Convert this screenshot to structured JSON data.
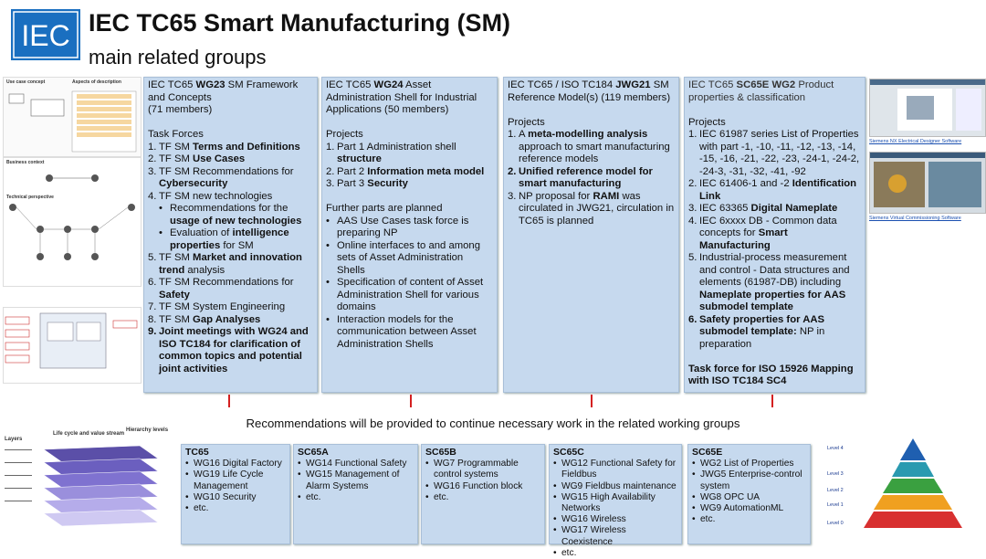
{
  "header": {
    "logo": "IEC",
    "title": "IEC TC65 Smart Manufacturing (SM)",
    "subtitle": "main related groups"
  },
  "columns": [
    {
      "heading": [
        [
          {
            "t": "IEC TC65 "
          },
          {
            "t": "WG23",
            "b": true
          },
          {
            "t": " SM Framework and Concepts"
          }
        ],
        [
          {
            "t": "(71 members)"
          }
        ]
      ],
      "sections": [
        {
          "title": [
            {
              "t": "Task Forces"
            }
          ],
          "items": [
            {
              "marker": "1.",
              "runs": [
                {
                  "t": "TF SM "
                },
                {
                  "t": "Terms and Definitions",
                  "b": true
                }
              ]
            },
            {
              "marker": "2.",
              "runs": [
                {
                  "t": "TF SM "
                },
                {
                  "t": "Use Cases",
                  "b": true
                }
              ]
            },
            {
              "marker": "3.",
              "runs": [
                {
                  "t": "TF SM Recommendations for "
                },
                {
                  "t": "Cybersecurity",
                  "b": true
                }
              ]
            },
            {
              "marker": "4.",
              "runs": [
                {
                  "t": "TF SM new technologies"
                }
              ],
              "sub": [
                [
                  {
                    "t": "Recommendations for the "
                  },
                  {
                    "t": "usage of new technologies",
                    "b": true
                  }
                ],
                [
                  {
                    "t": "Evaluation of "
                  },
                  {
                    "t": "intelligence properties",
                    "b": true
                  },
                  {
                    "t": " for SM"
                  }
                ]
              ]
            },
            {
              "marker": "5.",
              "runs": [
                {
                  "t": "TF SM "
                },
                {
                  "t": "Market and innovation trend",
                  "b": true
                },
                {
                  "t": " analysis"
                }
              ]
            },
            {
              "marker": "6.",
              "runs": [
                {
                  "t": "TF SM Recommendations for "
                },
                {
                  "t": "Safety",
                  "b": true
                }
              ]
            },
            {
              "marker": "7.",
              "runs": [
                {
                  "t": "TF SM System Engineering"
                }
              ]
            },
            {
              "marker": "8.",
              "runs": [
                {
                  "t": "TF SM "
                },
                {
                  "t": "Gap Analyses",
                  "b": true
                }
              ]
            },
            {
              "marker": "9.",
              "marker_bold": true,
              "runs": [
                {
                  "t": "Joint meetings with WG24 and ISO TC184 for clarification of common topics and potential joint activities",
                  "b": true
                }
              ]
            }
          ]
        }
      ]
    },
    {
      "heading": [
        [
          {
            "t": "IEC TC65 "
          },
          {
            "t": "WG24",
            "b": true
          },
          {
            "t": " Asset Administration Shell for Industrial Applications (50 members)"
          }
        ]
      ],
      "sections": [
        {
          "title": [
            {
              "t": "Projects"
            }
          ],
          "items": [
            {
              "marker": "1.",
              "runs": [
                {
                  "t": "Part 1 Administration shell "
                },
                {
                  "t": "structure",
                  "b": true
                }
              ]
            },
            {
              "marker": "2.",
              "runs": [
                {
                  "t": "Part 2 "
                },
                {
                  "t": "Information meta model",
                  "b": true
                }
              ]
            },
            {
              "marker": "3.",
              "runs": [
                {
                  "t": "Part 3 "
                },
                {
                  "t": "Security",
                  "b": true
                }
              ]
            }
          ]
        },
        {
          "title": [
            {
              "t": "Further parts are planned"
            }
          ],
          "items": [
            {
              "runs": [
                {
                  "t": "AAS Use Cases task force is preparing NP"
                }
              ]
            },
            {
              "runs": [
                {
                  "t": "Online interfaces to and among sets of Asset Administration Shells"
                }
              ]
            },
            {
              "runs": [
                {
                  "t": "Specification of content of Asset Administration Shell for various domains"
                }
              ]
            },
            {
              "runs": [
                {
                  "t": "Interaction models for the communication between Asset Administration Shells"
                }
              ]
            }
          ]
        }
      ]
    },
    {
      "heading": [
        [
          {
            "t": "IEC TC65 / ISO TC184 "
          },
          {
            "t": "JWG21",
            "b": true
          },
          {
            "t": " SM Reference Model(s) (119 members)"
          }
        ]
      ],
      "sections": [
        {
          "title": [
            {
              "t": "Projects"
            }
          ],
          "items": [
            {
              "marker": "1.",
              "runs": [
                {
                  "t": "A "
                },
                {
                  "t": "meta-modelling analysis",
                  "b": true
                },
                {
                  "t": " approach to smart manufacturing reference models"
                }
              ]
            },
            {
              "marker": "2.",
              "marker_bold": true,
              "runs": [
                {
                  "t": "Unified reference model for smart manufacturing",
                  "b": true
                }
              ]
            },
            {
              "marker": "3.",
              "runs": [
                {
                  "t": "NP proposal for "
                },
                {
                  "t": "RAMI",
                  "b": true
                },
                {
                  "t": " was circulated in JWG21, circulation in TC65 is planned"
                }
              ]
            }
          ]
        }
      ]
    },
    {
      "heading": [
        [
          {
            "t": "IEC TC65 "
          },
          {
            "t": "SC65E WG2",
            "b": true
          },
          {
            "t": " Product properties & classification"
          }
        ]
      ],
      "sections": [
        {
          "title": [
            {
              "t": "Projects"
            }
          ],
          "items": [
            {
              "marker": "1.",
              "runs": [
                {
                  "t": "IEC 61987 series List of Properties with part -1, -10, -11, -12, -13, -14, -15, -16, -21, -22, -23, -24-1, -24-2, -24-3, -31, -32, -41, -92"
                }
              ]
            },
            {
              "marker": "2.",
              "runs": [
                {
                  "t": "IEC 61406-1 and -2 "
                },
                {
                  "t": "Identification Link",
                  "b": true
                }
              ]
            },
            {
              "marker": "3.",
              "runs": [
                {
                  "t": "IEC 63365 "
                },
                {
                  "t": "Digital Nameplate",
                  "b": true
                }
              ]
            },
            {
              "marker": "4.",
              "runs": [
                {
                  "t": "IEC 6xxxx DB - Common data concepts for "
                },
                {
                  "t": "Smart Manufacturing",
                  "b": true
                }
              ]
            },
            {
              "marker": "5.",
              "runs": [
                {
                  "t": "Industrial-process measurement and control - Data structures and elements (61987-DB) including "
                },
                {
                  "t": "Nameplate properties for AAS submodel template",
                  "b": true
                }
              ]
            },
            {
              "marker": "6.",
              "marker_bold": true,
              "runs": [
                {
                  "t": "Safety properties for AAS submodel template:",
                  "b": true
                },
                {
                  "t": " NP in preparation"
                }
              ]
            }
          ]
        },
        {
          "title": [
            {
              "t": "Task force for ISO 15926 Mapping with ISO TC184 SC4",
              "b": true
            }
          ],
          "items": []
        }
      ]
    }
  ],
  "recommendation": "Recommendations will be provided to continue necessary work in the related working groups",
  "groups": [
    {
      "title": "TC65",
      "items": [
        "WG16 Digital Factory",
        "WG19 Life Cycle Management",
        "WG10 Security",
        "etc."
      ]
    },
    {
      "title": "SC65A",
      "items": [
        "WG14 Functional Safety",
        "WG15 Management of Alarm Systems",
        "etc."
      ]
    },
    {
      "title": "SC65B",
      "items": [
        "WG7 Programmable control systems",
        "WG16 Function block",
        "etc."
      ]
    },
    {
      "title": "SC65C",
      "items": [
        "WG12 Functional Safety for Fieldbus",
        "WG9 Fieldbus maintenance",
        "WG15 High Availability Networks",
        "WG16 Wireless",
        "WG17 Wireless Coexistence",
        "etc."
      ]
    },
    {
      "title": "SC65E",
      "items": [
        "WG2 List of Properties",
        "JWG5 Enterprise-control system",
        "WG8 OPC UA",
        "WG9 AutomationML",
        "etc."
      ]
    }
  ],
  "left_figures": {
    "use_case": "Use case concept",
    "aspects": "Aspects of description",
    "business": "Business context",
    "technical": "Technical perspective",
    "layers": "Layers",
    "lifecycle": "Life cycle and value stream",
    "hierarchy": "Hierarchy levels"
  },
  "right_figures": {
    "caption1": "Siemens NX Electrical Designer Software",
    "caption2": "Siemens Virtual Commissioning Software",
    "levels": [
      "Level 4",
      "Level 3",
      "Level 2",
      "Level 1",
      "Level 0"
    ]
  }
}
